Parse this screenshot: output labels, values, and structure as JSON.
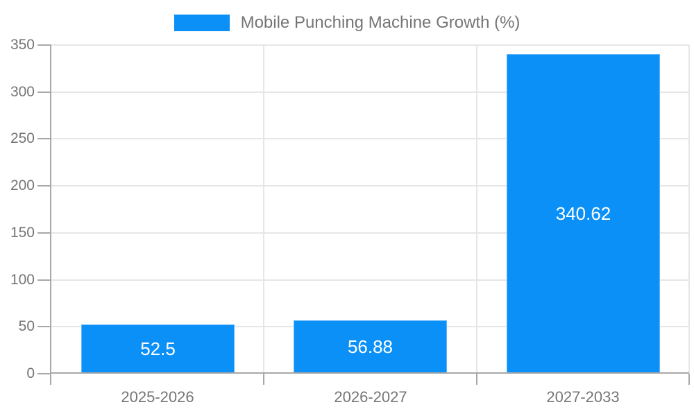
{
  "legend": {
    "label": "Mobile Punching Machine Growth (%)"
  },
  "chart_data": {
    "type": "bar",
    "title": "Mobile Punching Machine Growth (%)",
    "categories": [
      "2025-2026",
      "2026-2027",
      "2027-2033"
    ],
    "values": [
      52.5,
      56.88,
      340.62
    ],
    "value_labels": [
      "52.5",
      "56.88",
      "340.62"
    ],
    "xlabel": "",
    "ylabel": "",
    "ylim": [
      0,
      350
    ],
    "yticks": [
      0,
      50,
      100,
      150,
      200,
      250,
      300,
      350
    ],
    "grid": true,
    "legend_position": "top",
    "colors": {
      "bar": "#0B90F8",
      "grid": "#E6E6E6",
      "axis": "#A8A8A8",
      "tick_text": "#757575",
      "value_text": "#FFFFFF",
      "background": "#FFFFFF"
    }
  }
}
